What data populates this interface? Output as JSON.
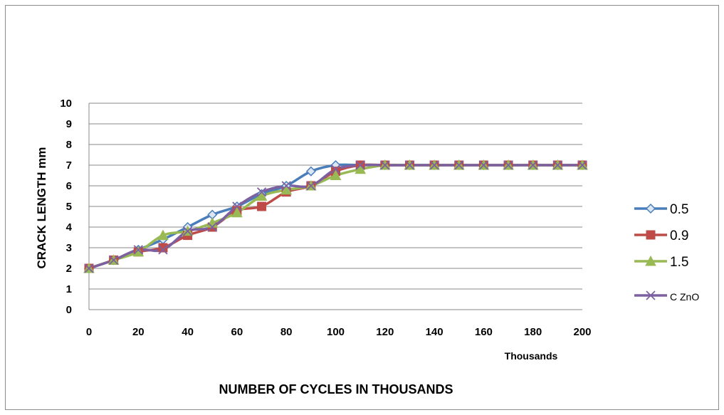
{
  "chart_data": {
    "type": "line",
    "title": "",
    "xlabel": "NUMBER OF CYCLES IN THOUSANDS",
    "ylabel": "CRACK  LENGTH mm",
    "x_unit_label": "Thousands",
    "x": [
      0,
      10,
      20,
      30,
      40,
      50,
      60,
      70,
      80,
      90,
      100,
      110,
      120,
      130,
      140,
      150,
      160,
      170,
      180,
      190,
      200
    ],
    "x_ticks": [
      "0",
      "20",
      "40",
      "60",
      "80",
      "100",
      "120",
      "140",
      "160",
      "180",
      "200"
    ],
    "y_ticks": [
      "0",
      "1",
      "2",
      "3",
      "4",
      "5",
      "6",
      "7",
      "8",
      "9",
      "10"
    ],
    "xlim": [
      0,
      200
    ],
    "ylim": [
      0,
      10
    ],
    "grid": "horizontal",
    "legend_position": "right",
    "series": [
      {
        "name": "0.5",
        "color": "#4a7ebb",
        "marker": "diamond",
        "values": [
          2,
          2.4,
          2.9,
          3.4,
          4.0,
          4.6,
          5.0,
          5.6,
          6.0,
          6.7,
          7.0,
          7.0,
          7.0,
          7.0,
          7.0,
          7.0,
          7.0,
          7.0,
          7.0,
          7.0,
          7.0
        ]
      },
      {
        "name": "0.9",
        "color": "#be4b48",
        "marker": "square",
        "values": [
          2,
          2.4,
          2.8,
          3.0,
          3.6,
          4.0,
          4.8,
          5.0,
          5.7,
          6.0,
          6.7,
          7.0,
          7.0,
          7.0,
          7.0,
          7.0,
          7.0,
          7.0,
          7.0,
          7.0,
          7.0
        ]
      },
      {
        "name": "1.5",
        "color": "#98b954",
        "marker": "triangle",
        "values": [
          2,
          2.4,
          2.8,
          3.6,
          3.8,
          4.2,
          4.7,
          5.5,
          5.8,
          6.0,
          6.5,
          6.8,
          7.0,
          7.0,
          7.0,
          7.0,
          7.0,
          7.0,
          7.0,
          7.0,
          7.0
        ]
      },
      {
        "name": "C ZnO",
        "color": "#7d60a0",
        "marker": "x",
        "values": [
          2,
          2.4,
          2.9,
          2.9,
          3.8,
          4.0,
          5.0,
          5.7,
          6.0,
          6.0,
          6.8,
          7.0,
          7.0,
          7.0,
          7.0,
          7.0,
          7.0,
          7.0,
          7.0,
          7.0,
          7.0
        ]
      }
    ]
  }
}
